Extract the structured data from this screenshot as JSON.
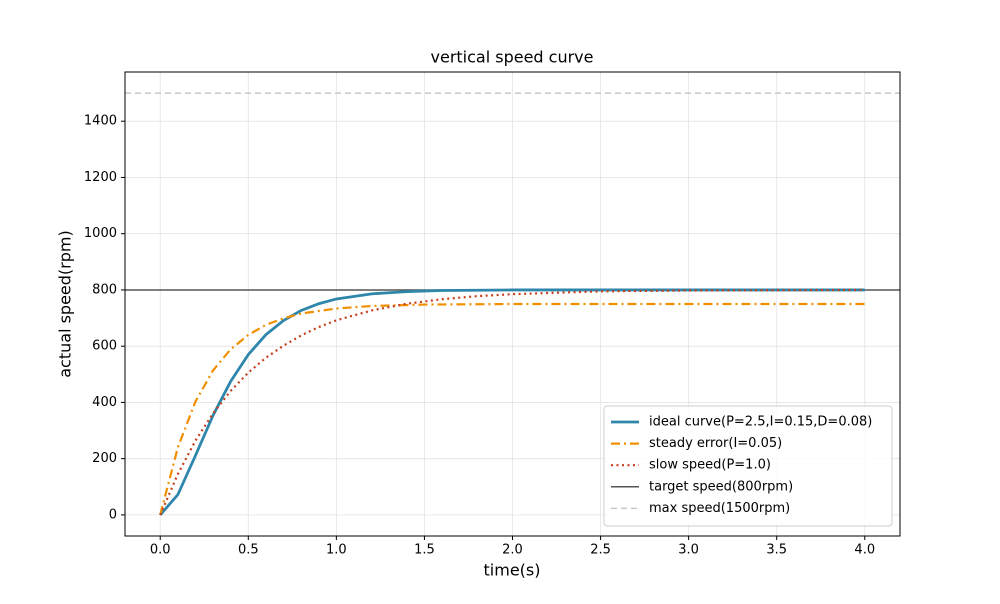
{
  "chart_data": {
    "type": "line",
    "title": "vertical speed curve",
    "xlabel": "time(s)",
    "ylabel": "actual speed(rpm)",
    "xlim": [
      -0.2,
      4.2
    ],
    "ylim": [
      -75,
      1575
    ],
    "xticks": [
      {
        "value": 0,
        "label": "0.0"
      },
      {
        "value": 0.5,
        "label": "0.5"
      },
      {
        "value": 1,
        "label": "1.0"
      },
      {
        "value": 1.5,
        "label": "1.5"
      },
      {
        "value": 2,
        "label": "2.0"
      },
      {
        "value": 2.5,
        "label": "2.5"
      },
      {
        "value": 3,
        "label": "3.0"
      },
      {
        "value": 3.5,
        "label": "3.5"
      },
      {
        "value": 4,
        "label": "4.0"
      }
    ],
    "yticks": [
      0,
      200,
      400,
      600,
      800,
      1000,
      1200,
      1400
    ],
    "grid": true,
    "legend": "lower right",
    "series": [
      {
        "name": "ideal curve(P=2.5,I=0.15,D=0.08)",
        "color": "#2e86ab",
        "style": "solid",
        "x": [
          0,
          0.1,
          0.2,
          0.3,
          0.4,
          0.5,
          0.6,
          0.7,
          0.8,
          0.9,
          1.0,
          1.2,
          1.4,
          1.6,
          2.0,
          2.5,
          3.0,
          3.5,
          4.0
        ],
        "values": [
          0,
          72,
          211,
          354,
          475,
          570,
          641,
          691,
          727,
          751,
          768,
          786,
          794,
          798,
          800,
          800,
          800,
          800,
          800
        ]
      },
      {
        "name": "steady error(I=0.05)",
        "color": "#f18f01",
        "style": "dashdot",
        "x": [
          0,
          0.1,
          0.2,
          0.3,
          0.4,
          0.5,
          0.6,
          0.7,
          0.8,
          1.0,
          1.2,
          1.5,
          2.0,
          2.5,
          3.0,
          3.5,
          4.0
        ],
        "values": [
          0,
          240,
          403,
          514,
          589,
          640,
          676,
          699,
          716,
          734,
          743,
          748,
          750,
          750,
          750,
          750,
          750
        ]
      },
      {
        "name": "slow speed(P=1.0)",
        "color": "#c73e1d",
        "style": "dotted",
        "x": [
          0,
          0.1,
          0.2,
          0.3,
          0.4,
          0.5,
          0.6,
          0.7,
          0.8,
          0.9,
          1.0,
          1.2,
          1.4,
          1.6,
          1.8,
          2.0,
          2.5,
          3.0,
          3.5,
          4.0
        ],
        "values": [
          0,
          145,
          264,
          361,
          441,
          506,
          559,
          602,
          638,
          668,
          692,
          727,
          751,
          767,
          778,
          785,
          795,
          798,
          799,
          800
        ]
      }
    ],
    "reference_lines": [
      {
        "name": "target speed(800rpm)",
        "value": 800,
        "color": "#555555",
        "style": "solid"
      },
      {
        "name": "max speed(1500rpm)",
        "value": 1500,
        "color": "#c8c8c8",
        "style": "dashed"
      }
    ]
  }
}
